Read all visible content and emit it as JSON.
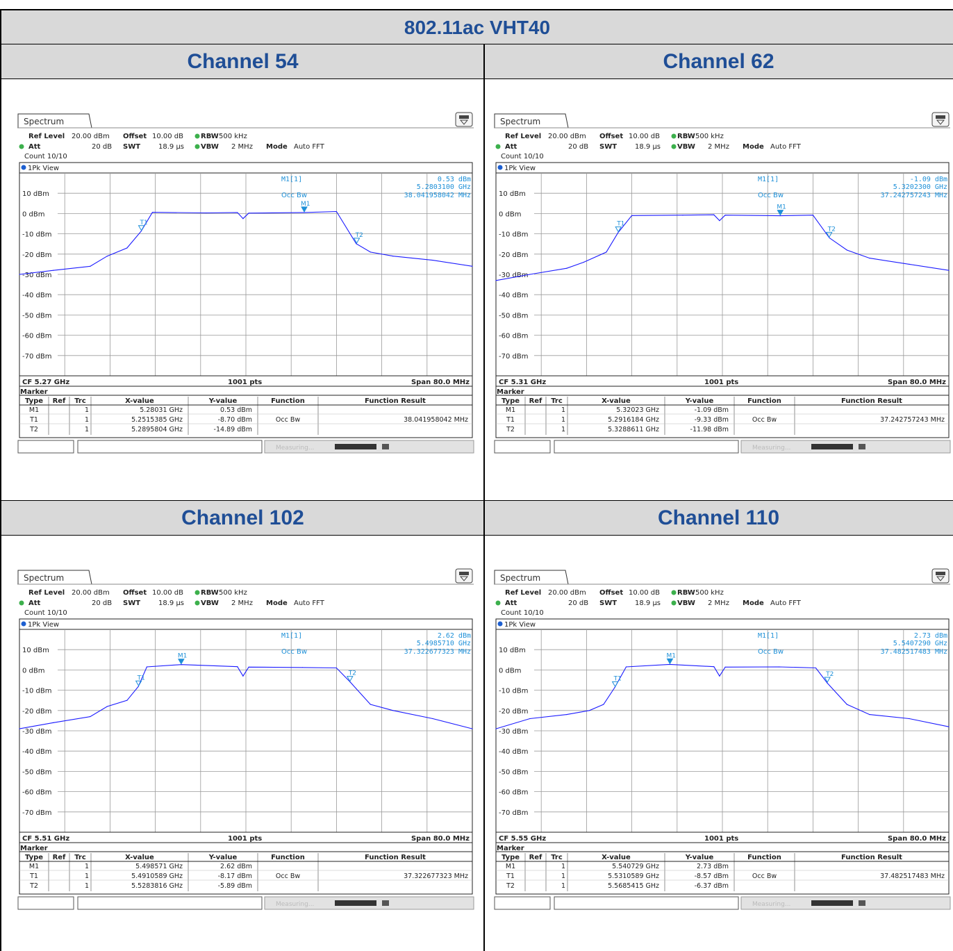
{
  "title": "802.11ac VHT40",
  "colors": {
    "header_bg": "#d9d9d9",
    "header_text": "#1f4e96",
    "trace": "#1a1aff",
    "marker": "#1e90d8",
    "led": "#3cb04c",
    "grid": "#808080"
  },
  "ui": {
    "tab": "Spectrum",
    "ref_level_label": "Ref Level",
    "ref_level": "20.00 dBm",
    "offset_label": "Offset",
    "offset": "10.00 dB",
    "rbw_label": "RBW",
    "rbw": "500 kHz",
    "att_label": "Att",
    "att": "20 dB",
    "swt_label": "SWT",
    "swt": "18.9 µs",
    "vbw_label": "VBW",
    "vbw": "2 MHz",
    "mode_label": "Mode",
    "mode": "Auto FFT",
    "count": "Count 10/10",
    "view": "1Pk View",
    "points": "1001 pts",
    "span": "Span 80.0 MHz",
    "marker_title": "Marker",
    "columns": [
      "Type",
      "Ref",
      "Trc",
      "X-value",
      "Y-value",
      "Function",
      "Function Result"
    ],
    "occ_label": "Occ Bw",
    "m1_label": "M1[1]",
    "status_word": "Measuring..."
  },
  "chart_data": [
    {
      "type": "line",
      "channel": "Channel 54",
      "cf": "CF 5.27 GHz",
      "xlabel": "",
      "ylabel": "",
      "x_unit": "GHz",
      "xlim": [
        5.23,
        5.31
      ],
      "ylim": [
        -80,
        20
      ],
      "y_ticks": [
        "10 dBm",
        "0 dBm",
        "-10 dBm",
        "-20 dBm",
        "-30 dBm",
        "-40 dBm",
        "-50 dBm",
        "-60 dBm",
        "-70 dBm"
      ],
      "grid": true,
      "m1_readout": {
        "value": "0.53 dBm",
        "freq": "5.2803100 GHz",
        "occ": "38.041958042 MHz"
      },
      "trace": [
        [
          5.23,
          -30
        ],
        [
          5.236,
          -28
        ],
        [
          5.2425,
          -26
        ],
        [
          5.2455,
          -21
        ],
        [
          5.249,
          -17
        ],
        [
          5.2515,
          -8.7
        ],
        [
          5.2535,
          0.6
        ],
        [
          5.263,
          0.3
        ],
        [
          5.2685,
          0.5
        ],
        [
          5.2695,
          -2.5
        ],
        [
          5.2705,
          0.2
        ],
        [
          5.2803,
          0.53
        ],
        [
          5.286,
          1
        ],
        [
          5.2895,
          -14.89
        ],
        [
          5.292,
          -19
        ],
        [
          5.296,
          -21
        ],
        [
          5.303,
          -23
        ],
        [
          5.31,
          -26
        ]
      ],
      "markers": [
        {
          "type": "M1",
          "ref": "",
          "trc": "1",
          "x": 5.28031,
          "y": 0.53,
          "x_text": "5.28031 GHz",
          "y_text": "0.53 dBm",
          "function": "",
          "result": ""
        },
        {
          "type": "T1",
          "ref": "",
          "trc": "1",
          "x": 5.2515385,
          "y": -8.7,
          "x_text": "5.2515385 GHz",
          "y_text": "-8.70 dBm",
          "function": "Occ Bw",
          "result": "38.041958042 MHz"
        },
        {
          "type": "T2",
          "ref": "",
          "trc": "1",
          "x": 5.2895804,
          "y": -14.89,
          "x_text": "5.2895804 GHz",
          "y_text": "-14.89 dBm",
          "function": "",
          "result": ""
        }
      ]
    },
    {
      "type": "line",
      "channel": "Channel 62",
      "cf": "CF 5.31 GHz",
      "xlabel": "",
      "ylabel": "",
      "x_unit": "GHz",
      "xlim": [
        5.27,
        5.35
      ],
      "ylim": [
        -80,
        20
      ],
      "y_ticks": [
        "10 dBm",
        "0 dBm",
        "-10 dBm",
        "-20 dBm",
        "-30 dBm",
        "-40 dBm",
        "-50 dBm",
        "-60 dBm",
        "-70 dBm"
      ],
      "grid": true,
      "m1_readout": {
        "value": "-1.09 dBm",
        "freq": "5.3202300 GHz",
        "occ": "37.242757243 MHz"
      },
      "trace": [
        [
          5.27,
          -33
        ],
        [
          5.276,
          -30
        ],
        [
          5.2825,
          -27
        ],
        [
          5.2855,
          -24
        ],
        [
          5.2895,
          -19
        ],
        [
          5.2916,
          -9.3
        ],
        [
          5.294,
          -1
        ],
        [
          5.303,
          -0.8
        ],
        [
          5.3085,
          -0.6
        ],
        [
          5.3095,
          -3.5
        ],
        [
          5.3105,
          -0.8
        ],
        [
          5.3202,
          -1.09
        ],
        [
          5.326,
          -0.8
        ],
        [
          5.3289,
          -11.98
        ],
        [
          5.332,
          -18
        ],
        [
          5.336,
          -22
        ],
        [
          5.343,
          -25
        ],
        [
          5.35,
          -28
        ]
      ],
      "markers": [
        {
          "type": "M1",
          "ref": "",
          "trc": "1",
          "x": 5.32023,
          "y": -1.09,
          "x_text": "5.32023 GHz",
          "y_text": "-1.09 dBm",
          "function": "",
          "result": ""
        },
        {
          "type": "T1",
          "ref": "",
          "trc": "1",
          "x": 5.2916184,
          "y": -9.33,
          "x_text": "5.2916184 GHz",
          "y_text": "-9.33 dBm",
          "function": "Occ Bw",
          "result": "37.242757243 MHz"
        },
        {
          "type": "T2",
          "ref": "",
          "trc": "1",
          "x": 5.3288611,
          "y": -11.98,
          "x_text": "5.3288611 GHz",
          "y_text": "-11.98 dBm",
          "function": "",
          "result": ""
        }
      ]
    },
    {
      "type": "line",
      "channel": "Channel 102",
      "cf": "CF 5.51 GHz",
      "xlabel": "",
      "ylabel": "",
      "x_unit": "GHz",
      "xlim": [
        5.47,
        5.55
      ],
      "ylim": [
        -80,
        20
      ],
      "y_ticks": [
        "10 dBm",
        "0 dBm",
        "-10 dBm",
        "-20 dBm",
        "-30 dBm",
        "-40 dBm",
        "-50 dBm",
        "-60 dBm",
        "-70 dBm"
      ],
      "grid": true,
      "m1_readout": {
        "value": "2.62 dBm",
        "freq": "5.4985710 GHz",
        "occ": "37.322677323 MHz"
      },
      "trace": [
        [
          5.47,
          -29
        ],
        [
          5.476,
          -26
        ],
        [
          5.4825,
          -23
        ],
        [
          5.4855,
          -18
        ],
        [
          5.489,
          -15
        ],
        [
          5.491,
          -8.2
        ],
        [
          5.4925,
          1.5
        ],
        [
          5.4986,
          2.62
        ],
        [
          5.5085,
          1.6
        ],
        [
          5.5095,
          -3
        ],
        [
          5.5105,
          1.4
        ],
        [
          5.52,
          1.2
        ],
        [
          5.526,
          1
        ],
        [
          5.5284,
          -5.89
        ],
        [
          5.532,
          -17
        ],
        [
          5.536,
          -20
        ],
        [
          5.543,
          -24
        ],
        [
          5.55,
          -29
        ]
      ],
      "markers": [
        {
          "type": "M1",
          "ref": "",
          "trc": "1",
          "x": 5.498571,
          "y": 2.62,
          "x_text": "5.498571 GHz",
          "y_text": "2.62 dBm",
          "function": "",
          "result": ""
        },
        {
          "type": "T1",
          "ref": "",
          "trc": "1",
          "x": 5.4910589,
          "y": -8.17,
          "x_text": "5.4910589 GHz",
          "y_text": "-8.17 dBm",
          "function": "Occ Bw",
          "result": "37.322677323 MHz"
        },
        {
          "type": "T2",
          "ref": "",
          "trc": "1",
          "x": 5.5283816,
          "y": -5.89,
          "x_text": "5.5283816 GHz",
          "y_text": "-5.89 dBm",
          "function": "",
          "result": ""
        }
      ]
    },
    {
      "type": "line",
      "channel": "Channel 110",
      "cf": "CF 5.55 GHz",
      "xlabel": "",
      "ylabel": "",
      "x_unit": "GHz",
      "xlim": [
        5.51,
        5.59
      ],
      "ylim": [
        -80,
        20
      ],
      "y_ticks": [
        "10 dBm",
        "0 dBm",
        "-10 dBm",
        "-20 dBm",
        "-30 dBm",
        "-40 dBm",
        "-50 dBm",
        "-60 dBm",
        "-70 dBm"
      ],
      "grid": true,
      "m1_readout": {
        "value": "2.73 dBm",
        "freq": "5.5407290 GHz",
        "occ": "37.482517483 MHz"
      },
      "trace": [
        [
          5.51,
          -29
        ],
        [
          5.516,
          -24
        ],
        [
          5.5225,
          -22
        ],
        [
          5.5265,
          -20
        ],
        [
          5.529,
          -17
        ],
        [
          5.531,
          -8.6
        ],
        [
          5.533,
          1.5
        ],
        [
          5.5407,
          2.73
        ],
        [
          5.5485,
          1.6
        ],
        [
          5.5495,
          -3
        ],
        [
          5.5505,
          1.4
        ],
        [
          5.56,
          1.5
        ],
        [
          5.5665,
          1
        ],
        [
          5.5685,
          -6.37
        ],
        [
          5.572,
          -17
        ],
        [
          5.576,
          -22
        ],
        [
          5.583,
          -24
        ],
        [
          5.59,
          -28
        ]
      ],
      "markers": [
        {
          "type": "M1",
          "ref": "",
          "trc": "1",
          "x": 5.540729,
          "y": 2.73,
          "x_text": "5.540729 GHz",
          "y_text": "2.73 dBm",
          "function": "",
          "result": ""
        },
        {
          "type": "T1",
          "ref": "",
          "trc": "1",
          "x": 5.5310589,
          "y": -8.57,
          "x_text": "5.5310589 GHz",
          "y_text": "-8.57 dBm",
          "function": "Occ Bw",
          "result": "37.482517483 MHz"
        },
        {
          "type": "T2",
          "ref": "",
          "trc": "1",
          "x": 5.5685415,
          "y": -6.37,
          "x_text": "5.5685415 GHz",
          "y_text": "-6.37 dBm",
          "function": "",
          "result": ""
        }
      ]
    }
  ]
}
